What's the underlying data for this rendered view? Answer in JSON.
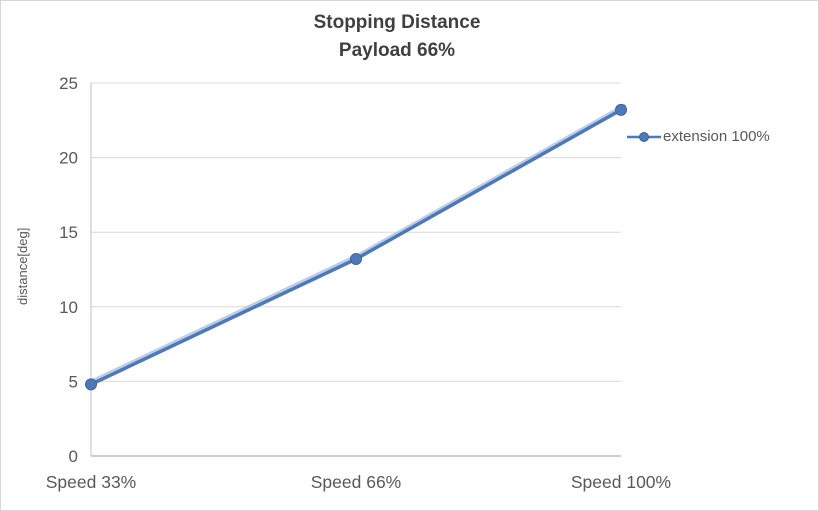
{
  "chart_data": {
    "type": "line",
    "title": "Stopping Distance",
    "subtitle": "Payload 66%",
    "ylabel": "distance[deg]",
    "categories": [
      "Speed 33%",
      "Speed 66%",
      "Speed 100%"
    ],
    "series": [
      {
        "name": "extension 100%",
        "values": [
          4.8,
          13.2,
          23.2
        ],
        "color": "#4e79b8",
        "marker": "circle"
      }
    ],
    "ylim": [
      0,
      25
    ],
    "ytick_step": 5,
    "yticks": [
      0,
      5,
      10,
      15,
      20,
      25
    ],
    "grid": true,
    "legend_position": "right",
    "line_shadow": true,
    "colors": {
      "grid": "#d9d9d9",
      "axis": "#bfbfbf",
      "tick_text": "#595959",
      "title_text": "#404040",
      "shadow_line": "#aec6e8",
      "marker_stroke": "#3e6496"
    }
  }
}
